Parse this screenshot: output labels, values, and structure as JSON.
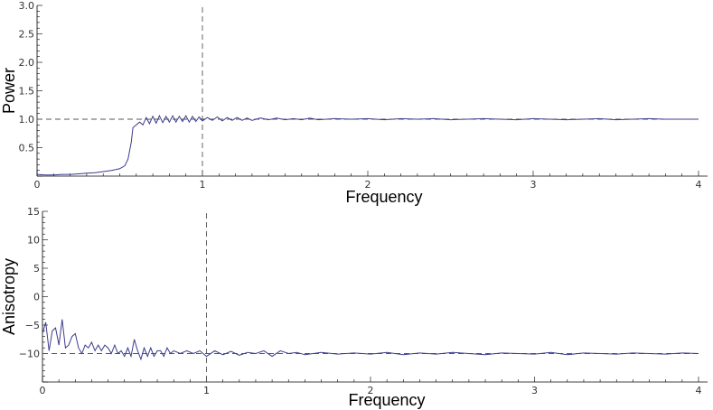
{
  "chart_data": [
    {
      "type": "line",
      "title": "",
      "xlabel": "Frequency",
      "ylabel": "Power",
      "xlim": [
        0,
        4
      ],
      "ylim": [
        0,
        3
      ],
      "xticks": [
        "0",
        "1",
        "2",
        "3",
        "4"
      ],
      "yticks": [
        "0.5",
        "1.0",
        "1.5",
        "2.0",
        "2.5",
        "3.0"
      ],
      "reference_lines": {
        "vertical_x": 1,
        "horizontal_y": 1.0
      },
      "color": "#3c3c8c",
      "series": [
        {
          "x": [
            0.0,
            0.05,
            0.1,
            0.15,
            0.2,
            0.25,
            0.3,
            0.35,
            0.4,
            0.45,
            0.5,
            0.53,
            0.55,
            0.57,
            0.58,
            0.6,
            0.62,
            0.64,
            0.66,
            0.68,
            0.7,
            0.72,
            0.74,
            0.76,
            0.78,
            0.8,
            0.82,
            0.84,
            0.86,
            0.88,
            0.9,
            0.92,
            0.94,
            0.96,
            0.98,
            1.0,
            1.03,
            1.06,
            1.09,
            1.12,
            1.15,
            1.18,
            1.21,
            1.24,
            1.27,
            1.3,
            1.35,
            1.4,
            1.45,
            1.5,
            1.55,
            1.6,
            1.65,
            1.7,
            1.8,
            1.9,
            2.0,
            2.1,
            2.2,
            2.3,
            2.4,
            2.5,
            2.6,
            2.7,
            2.8,
            2.9,
            3.0,
            3.1,
            3.2,
            3.3,
            3.4,
            3.5,
            3.6,
            3.7,
            3.8,
            3.9,
            4.0
          ],
          "y": [
            0.03,
            0.02,
            0.02,
            0.03,
            0.03,
            0.04,
            0.05,
            0.06,
            0.08,
            0.1,
            0.13,
            0.18,
            0.3,
            0.6,
            0.85,
            0.9,
            0.95,
            0.9,
            1.03,
            0.92,
            1.05,
            0.93,
            1.06,
            0.94,
            1.05,
            0.95,
            1.06,
            0.95,
            1.05,
            0.96,
            1.06,
            0.95,
            1.05,
            0.96,
            1.04,
            0.97,
            1.03,
            0.98,
            1.04,
            0.97,
            1.03,
            0.98,
            1.03,
            0.98,
            1.02,
            0.98,
            1.02,
            0.99,
            1.02,
            0.99,
            1.01,
            0.99,
            1.02,
            0.99,
            1.01,
            1.0,
            1.01,
            0.99,
            1.01,
            1.0,
            1.01,
            0.99,
            1.0,
            1.01,
            1.0,
            0.99,
            1.01,
            1.0,
            0.99,
            1.0,
            1.01,
            0.99,
            1.0,
            1.01,
            1.0,
            1.0,
            1.0
          ]
        }
      ]
    },
    {
      "type": "line",
      "title": "",
      "xlabel": "Frequency",
      "ylabel": "Anisotropy",
      "xlim": [
        0,
        4
      ],
      "ylim": [
        -15,
        15
      ],
      "xticks": [
        "0",
        "1",
        "2",
        "3",
        "4"
      ],
      "yticks": [
        "-10",
        "-5",
        "0",
        "5",
        "10",
        "15"
      ],
      "reference_lines": {
        "vertical_x": 1,
        "horizontal_y": -10
      },
      "color": "#3c3c8c",
      "series": [
        {
          "x": [
            0.0,
            0.02,
            0.04,
            0.06,
            0.08,
            0.1,
            0.12,
            0.14,
            0.16,
            0.18,
            0.2,
            0.22,
            0.24,
            0.26,
            0.28,
            0.3,
            0.32,
            0.34,
            0.36,
            0.38,
            0.4,
            0.42,
            0.44,
            0.46,
            0.48,
            0.5,
            0.52,
            0.54,
            0.56,
            0.58,
            0.6,
            0.62,
            0.64,
            0.66,
            0.68,
            0.7,
            0.72,
            0.74,
            0.76,
            0.78,
            0.8,
            0.84,
            0.88,
            0.92,
            0.96,
            1.0,
            1.05,
            1.1,
            1.15,
            1.2,
            1.25,
            1.3,
            1.35,
            1.4,
            1.45,
            1.5,
            1.55,
            1.6,
            1.7,
            1.8,
            1.9,
            2.0,
            2.1,
            2.2,
            2.3,
            2.4,
            2.5,
            2.6,
            2.7,
            2.8,
            2.9,
            3.0,
            3.1,
            3.2,
            3.3,
            3.4,
            3.5,
            3.6,
            3.7,
            3.8,
            3.9,
            4.0
          ],
          "y": [
            -6.5,
            -4.5,
            -9.5,
            -6.0,
            -5.5,
            -8.5,
            -4.0,
            -9.0,
            -8.5,
            -7.0,
            -6.5,
            -9.0,
            -10.0,
            -8.5,
            -9.0,
            -8.0,
            -9.5,
            -8.5,
            -9.5,
            -8.5,
            -9.0,
            -10.0,
            -8.5,
            -10.0,
            -9.5,
            -10.5,
            -9.0,
            -10.5,
            -7.5,
            -9.5,
            -11.0,
            -9.0,
            -10.5,
            -9.0,
            -10.5,
            -9.5,
            -9.5,
            -10.5,
            -9.0,
            -10.0,
            -9.5,
            -10.0,
            -9.5,
            -10.0,
            -9.5,
            -10.5,
            -9.5,
            -10.2,
            -9.6,
            -10.3,
            -9.8,
            -10.0,
            -9.5,
            -10.5,
            -9.5,
            -10.0,
            -9.8,
            -10.2,
            -9.8,
            -10.1,
            -9.9,
            -10.1,
            -9.8,
            -10.2,
            -9.9,
            -10.1,
            -9.8,
            -10.0,
            -10.2,
            -9.9,
            -10.0,
            -10.1,
            -9.8,
            -10.2,
            -9.9,
            -10.0,
            -10.1,
            -9.9,
            -10.0,
            -10.1,
            -9.9,
            -10.0
          ]
        }
      ]
    }
  ]
}
